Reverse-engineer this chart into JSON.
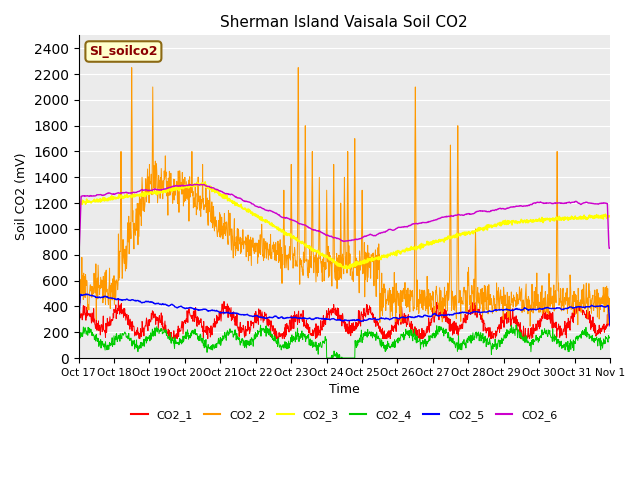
{
  "title": "Sherman Island Vaisala Soil CO2",
  "ylabel": "Soil CO2 (mV)",
  "xlabel": "Time",
  "legend_label": "SI_soilco2",
  "ylim": [
    0,
    2500
  ],
  "yticks": [
    0,
    200,
    400,
    600,
    800,
    1000,
    1200,
    1400,
    1600,
    1800,
    2000,
    2200,
    2400
  ],
  "series_colors": {
    "CO2_1": "#ff0000",
    "CO2_2": "#ff9900",
    "CO2_3": "#ffff00",
    "CO2_4": "#00cc00",
    "CO2_5": "#0000ff",
    "CO2_6": "#cc00cc"
  },
  "background_color": "#ebebeb",
  "x_tick_labels": [
    "Oct 17",
    "Oct 18",
    "Oct 19",
    "Oct 20",
    "Oct 21",
    "Oct 22",
    "Oct 23",
    "Oct 24",
    "Oct 25",
    "Oct 26",
    "Oct 27",
    "Oct 28",
    "Oct 29",
    "Oct 30",
    "Oct 31",
    "Nov 1"
  ]
}
